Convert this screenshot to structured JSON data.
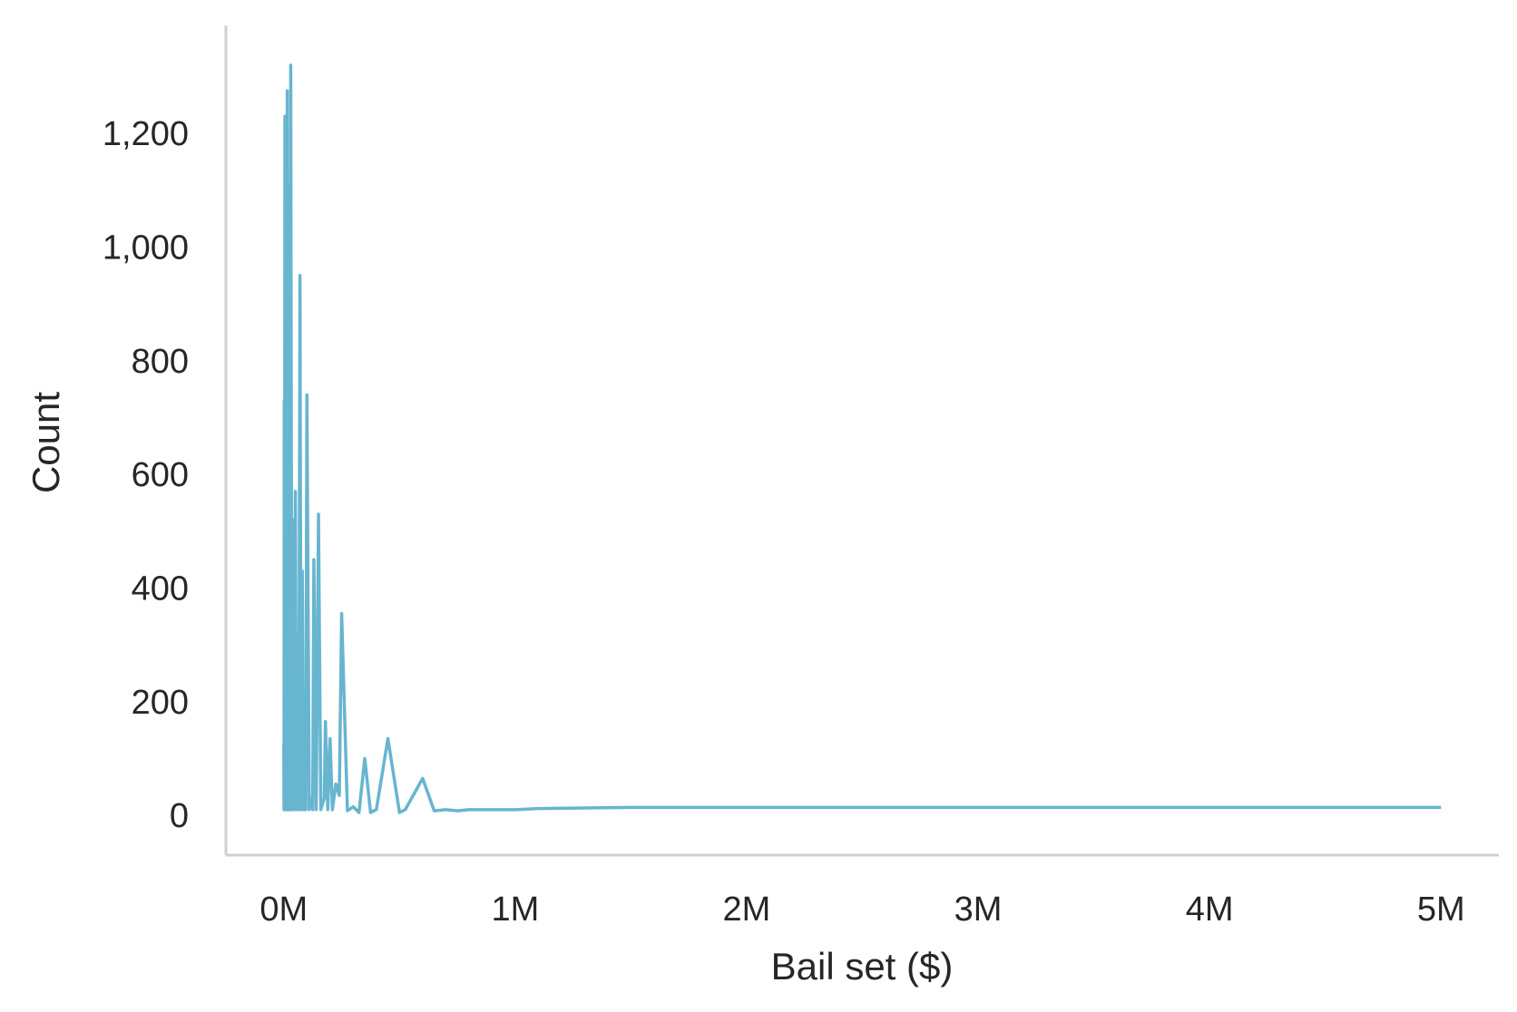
{
  "chart_data": {
    "type": "line",
    "title": "",
    "xlabel": "Bail set ($)",
    "ylabel": "Count",
    "xlim": [
      -250000,
      5250000
    ],
    "ylim": [
      -70,
      1390
    ],
    "x_ticks": [
      0,
      1000000,
      2000000,
      3000000,
      4000000,
      5000000
    ],
    "x_tick_labels": [
      "0M",
      "1M",
      "2M",
      "3M",
      "4M",
      "5M"
    ],
    "y_ticks": [
      0,
      200,
      400,
      600,
      800,
      1000,
      1200
    ],
    "y_tick_labels": [
      "0",
      "200",
      "400",
      "600",
      "800",
      "1,000",
      "1,200"
    ],
    "grid": false,
    "line_color": "#67b5cf",
    "axis_color": "#d0d0d0",
    "series": [
      {
        "x": [
          0,
          1000,
          2000,
          3000,
          5000,
          7500,
          10000,
          12500,
          15000,
          17500,
          20000,
          22500,
          25000,
          27500,
          30000,
          35000,
          40000,
          45000,
          50000,
          55000,
          60000,
          65000,
          70000,
          75000,
          80000,
          85000,
          90000,
          95000,
          100000,
          110000,
          120000,
          125000,
          130000,
          140000,
          150000,
          160000,
          175000,
          180000,
          190000,
          200000,
          210000,
          225000,
          240000,
          250000,
          275000,
          300000,
          325000,
          350000,
          375000,
          400000,
          450000,
          500000,
          525000,
          600000,
          650000,
          700000,
          750000,
          800000,
          850000,
          1000000,
          1100000,
          1500000,
          2000000,
          2500000,
          3000000,
          5000000
        ],
        "y": [
          125,
          10,
          730,
          10,
          1230,
          10,
          400,
          10,
          1275,
          10,
          520,
          10,
          1110,
          10,
          1320,
          10,
          520,
          10,
          570,
          10,
          320,
          10,
          950,
          10,
          430,
          10,
          10,
          10,
          740,
          10,
          30,
          10,
          450,
          10,
          530,
          10,
          30,
          165,
          10,
          135,
          10,
          55,
          35,
          355,
          8,
          15,
          5,
          100,
          5,
          10,
          135,
          5,
          10,
          65,
          8,
          10,
          8,
          10,
          10,
          10,
          12,
          14,
          14,
          14,
          14,
          14
        ]
      }
    ]
  }
}
